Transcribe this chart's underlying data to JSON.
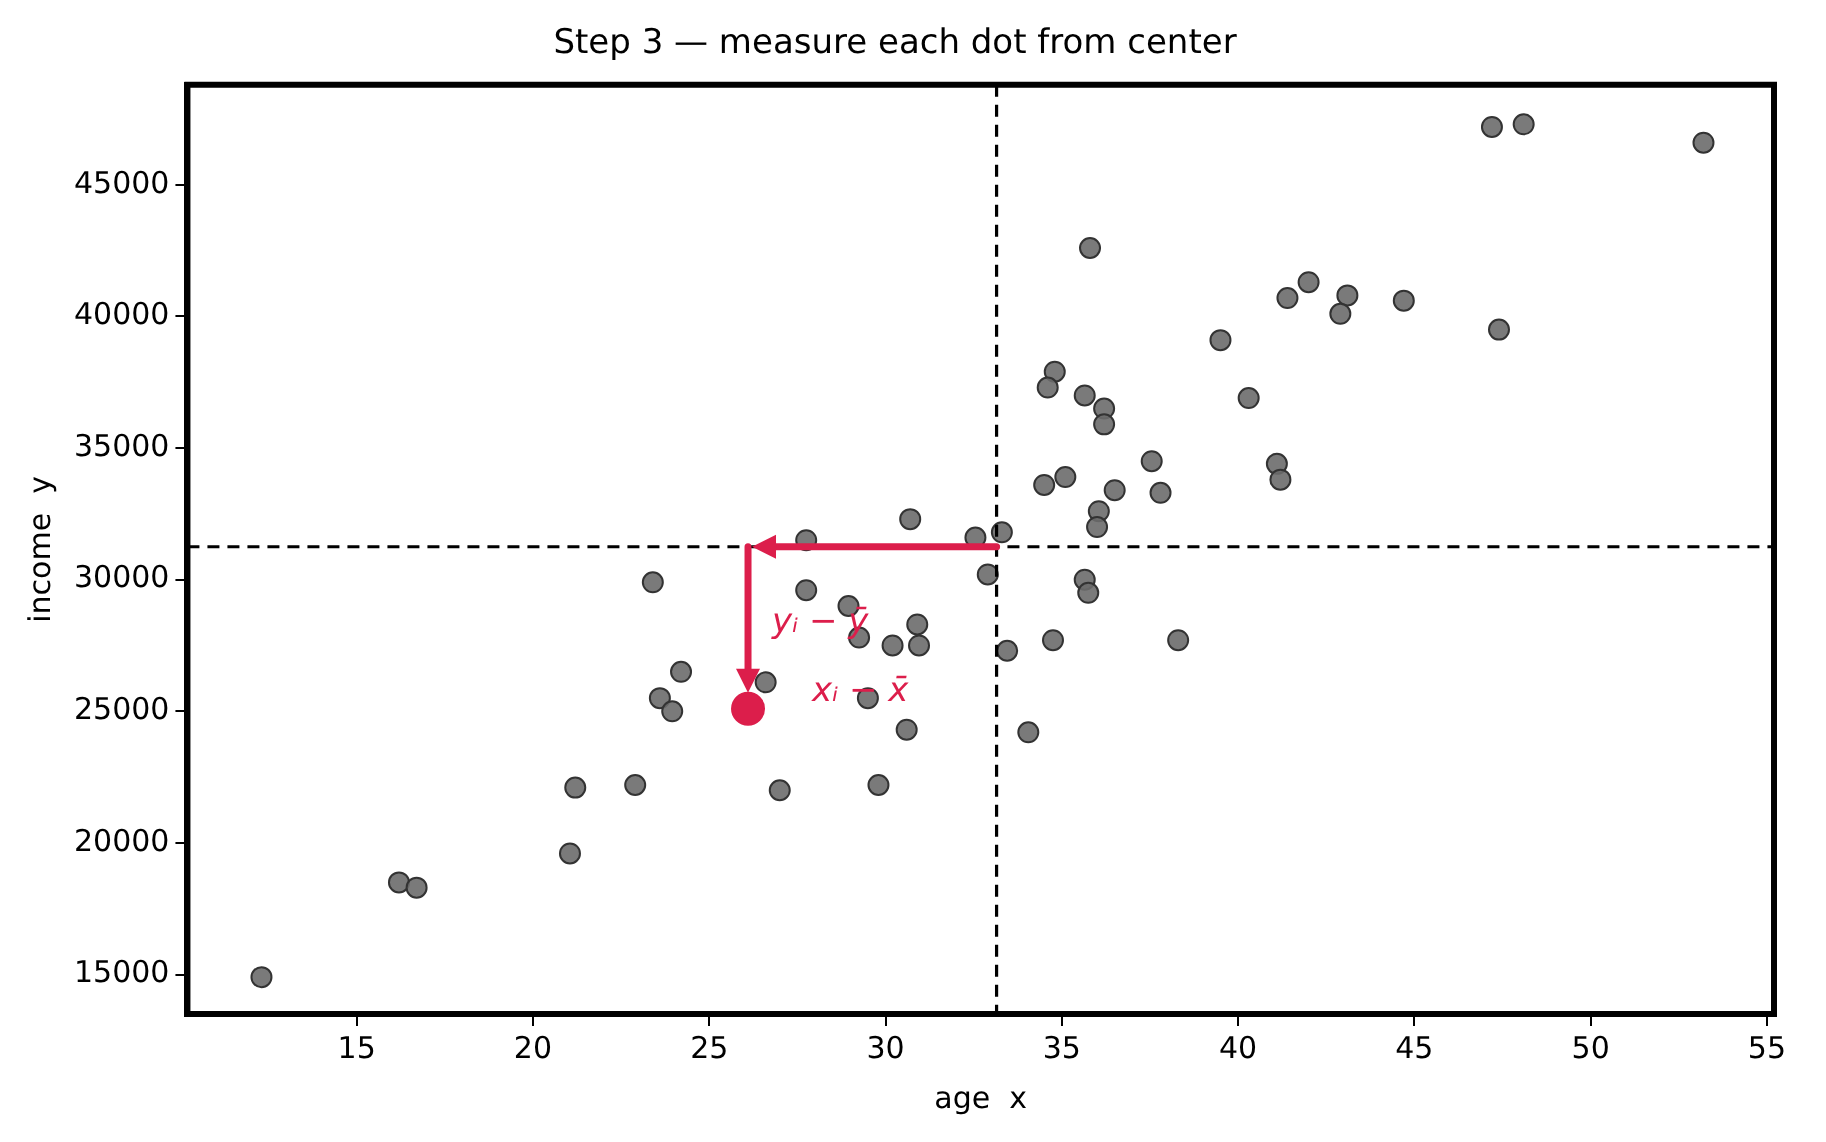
{
  "chart_data": {
    "type": "scatter",
    "title": "Step 3 — measure each dot from center",
    "xlabel": "age  x",
    "ylabel": "income  y",
    "xlim": [
      10.2,
      55.2
    ],
    "ylim": [
      13500,
      48800
    ],
    "xticks": [
      15,
      20,
      25,
      30,
      35,
      40,
      45,
      50,
      55
    ],
    "yticks": [
      15000,
      20000,
      25000,
      30000,
      35000,
      40000,
      45000
    ],
    "grid": false,
    "legend": false,
    "marker": "circle",
    "series": [
      {
        "color": "#6b6b6b",
        "x": [
          12.3,
          16.2,
          16.7,
          21.05,
          21.2,
          22.9,
          23.4,
          23.6,
          23.95,
          24.2,
          26.6,
          27.0,
          27.75,
          27.75,
          28.95,
          29.25,
          29.5,
          29.8,
          30.2,
          30.6,
          30.9,
          30.95,
          30.7,
          32.55,
          33.3,
          32.9,
          33.45,
          34.05,
          34.75,
          35.65,
          35.75,
          36.05,
          36.0,
          38.3,
          34.5,
          35.1,
          36.5,
          37.8,
          37.55,
          47.2,
          48.1,
          53.2,
          35.8,
          42.0,
          41.4,
          43.1,
          42.9,
          44.7,
          47.4,
          39.5,
          40.3,
          34.8,
          34.6,
          35.65,
          36.2,
          36.2,
          41.1,
          41.2
        ],
        "values": [
          14900,
          18500,
          18300,
          19600,
          22100,
          22200,
          29900,
          25500,
          25000,
          26500,
          26100,
          22000,
          31500,
          29600,
          29000,
          27800,
          25500,
          22200,
          27500,
          24300,
          28300,
          27500,
          32300,
          31600,
          31800,
          30200,
          27300,
          24200,
          27700,
          30000,
          29500,
          32600,
          32000,
          27700,
          33600,
          33900,
          33400,
          33300,
          34500,
          47200,
          47300,
          46600,
          42600,
          41300,
          40700,
          40800,
          40100,
          40600,
          39500,
          39100,
          36900,
          37900,
          37300,
          37000,
          36500,
          35900,
          34400,
          33800
        ]
      },
      {
        "color": "#dc1e4b",
        "x": [
          26.1
        ],
        "values": [
          25100
        ]
      }
    ],
    "ref_lines": [
      {
        "axis": "x",
        "value": 33.15,
        "color": "#000000",
        "line_style": "dashed"
      },
      {
        "axis": "y",
        "value": 31250,
        "color": "#000000",
        "line_style": "dashed"
      }
    ],
    "annotations": [
      "yᵢ − ȳ",
      "xᵢ − x̄"
    ]
  }
}
